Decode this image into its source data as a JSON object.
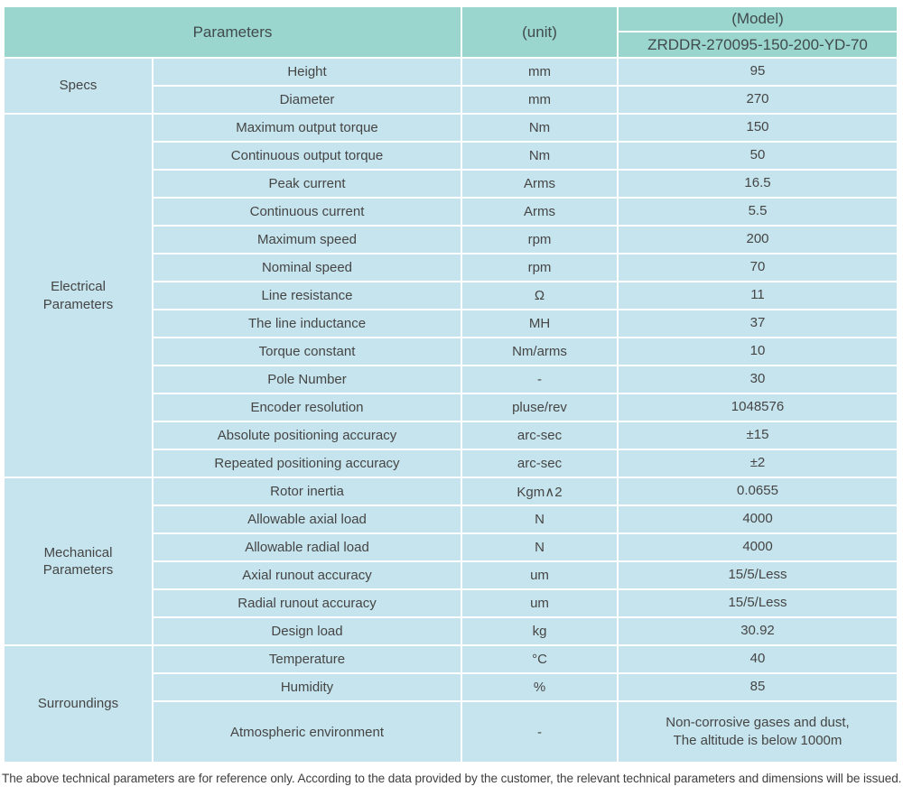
{
  "table": {
    "header": {
      "parameters_label": "Parameters",
      "unit_label": "(unit)",
      "model_label": "(Model)",
      "model_value": "ZRDDR-270095-150-200-YD-70"
    },
    "sections": [
      {
        "category": "Specs",
        "rows": [
          {
            "name": "Height",
            "unit": "mm",
            "value": "95"
          },
          {
            "name": "Diameter",
            "unit": "mm",
            "value": "270"
          }
        ]
      },
      {
        "category": "Electrical Parameters",
        "rows": [
          {
            "name": "Maximum output torque",
            "unit": "Nm",
            "value": "150"
          },
          {
            "name": "Continuous output torque",
            "unit": "Nm",
            "value": "50"
          },
          {
            "name": "Peak current",
            "unit": "Arms",
            "value": "16.5"
          },
          {
            "name": "Continuous current",
            "unit": "Arms",
            "value": "5.5"
          },
          {
            "name": "Maximum speed",
            "unit": "rpm",
            "value": "200"
          },
          {
            "name": "Nominal speed",
            "unit": "rpm",
            "value": "70"
          },
          {
            "name": "Line resistance",
            "unit": "Ω",
            "value": "11"
          },
          {
            "name": "The line inductance",
            "unit": "MH",
            "value": "37"
          },
          {
            "name": "Torque constant",
            "unit": "Nm/arms",
            "value": "10"
          },
          {
            "name": "Pole Number",
            "unit": "-",
            "value": "30"
          },
          {
            "name": "Encoder resolution",
            "unit": "pluse/rev",
            "value": "1048576"
          },
          {
            "name": "Absolute positioning accuracy",
            "unit": "arc-sec",
            "value": "±15"
          },
          {
            "name": "Repeated positioning accuracy",
            "unit": "arc-sec",
            "value": "±2"
          }
        ]
      },
      {
        "category": "Mechanical Parameters",
        "rows": [
          {
            "name": "Rotor inertia",
            "unit": "Kgm∧2",
            "value": "0.0655"
          },
          {
            "name": "Allowable axial load",
            "unit": "N",
            "value": "4000"
          },
          {
            "name": "Allowable radial load",
            "unit": "N",
            "value": "4000"
          },
          {
            "name": "Axial runout accuracy",
            "unit": "um",
            "value": "15/5/Less"
          },
          {
            "name": "Radial runout accuracy",
            "unit": "um",
            "value": "15/5/Less"
          },
          {
            "name": "Design load",
            "unit": "kg",
            "value": "30.92"
          }
        ]
      },
      {
        "category": "Surroundings",
        "rows": [
          {
            "name": "Temperature",
            "unit": "°C",
            "value": "40"
          },
          {
            "name": "Humidity",
            "unit": "%",
            "value": "85"
          },
          {
            "name": "Atmospheric environment",
            "unit": "-",
            "value": "Non-corrosive gases and dust,\nThe altitude is below 1000m",
            "tall": true
          }
        ]
      }
    ]
  },
  "footer": {
    "note": "The above technical parameters are for reference only. According to the data provided by the customer, the relevant technical parameters and dimensions will be issued."
  },
  "colors": {
    "header_bg": "#9ad5ce",
    "cell_bg": "#c6e4ed",
    "gap": "#ffffff",
    "text": "#454545"
  }
}
